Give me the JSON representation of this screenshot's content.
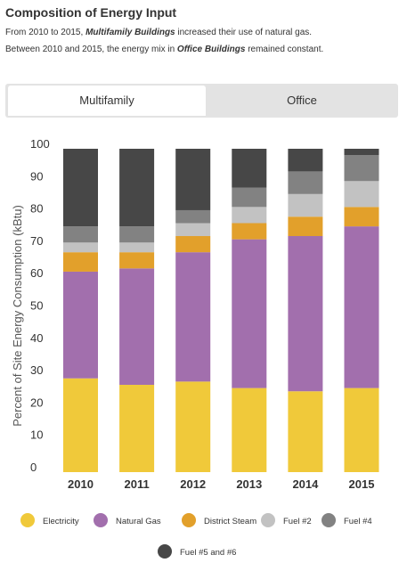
{
  "header": {
    "title": "Composition of Energy Input",
    "sub1_pre": "From 2010 to 2015, ",
    "sub1_em": "Multifamily Buildings",
    "sub1_post": " increased their use of natural gas.",
    "sub2_pre": "Between 2010 and 2015, the energy mix in ",
    "sub2_em": "Office Buildings",
    "sub2_post": " remained constant."
  },
  "tabs": [
    {
      "label": "Multifamily",
      "active": true
    },
    {
      "label": "Office",
      "active": false
    }
  ],
  "chart_data": {
    "type": "bar",
    "stacked": true,
    "categories": [
      "2010",
      "2011",
      "2012",
      "2013",
      "2014",
      "2015"
    ],
    "ylabel": "Percent of Site Energy Consumption (kBtu)",
    "xlabel": "",
    "ylim": [
      0,
      100
    ],
    "yticks": [
      0,
      10,
      20,
      30,
      40,
      50,
      60,
      70,
      80,
      90,
      100
    ],
    "grid": false,
    "legend_position": "bottom",
    "series": [
      {
        "name": "Electricity",
        "color": "#f0c93a",
        "values": [
          29,
          27,
          28,
          26,
          25,
          26
        ]
      },
      {
        "name": "Natural Gas",
        "color": "#a26fad",
        "values": [
          33,
          36,
          40,
          46,
          48,
          50
        ]
      },
      {
        "name": "District Steam",
        "color": "#e2a02b",
        "values": [
          6,
          5,
          5,
          5,
          6,
          6
        ]
      },
      {
        "name": "Fuel #2",
        "color": "#c2c2c2",
        "values": [
          3,
          3,
          4,
          5,
          7,
          8
        ]
      },
      {
        "name": "Fuel #4",
        "color": "#828282",
        "values": [
          5,
          5,
          4,
          6,
          7,
          8
        ]
      },
      {
        "name": "Fuel #5 and #6",
        "color": "#474747",
        "values": [
          24,
          24,
          19,
          12,
          7,
          2
        ]
      }
    ]
  }
}
